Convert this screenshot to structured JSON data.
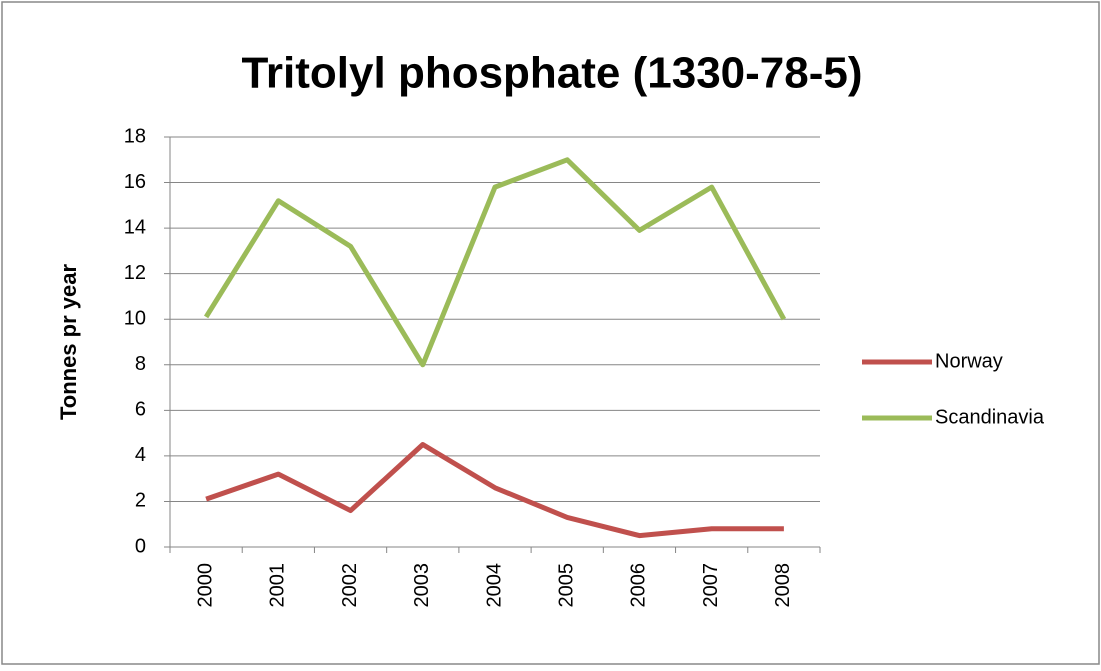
{
  "chart_data": {
    "type": "line",
    "title": "Tritolyl phosphate (1330-78-5)",
    "y_label": "Tonnes pr year",
    "categories": [
      "2000",
      "2001",
      "2002",
      "2003",
      "2004",
      "2005",
      "2006",
      "2007",
      "2008"
    ],
    "series": [
      {
        "name": "Norway",
        "color": "#c0504d",
        "values": [
          2.1,
          3.2,
          1.6,
          4.5,
          2.6,
          1.3,
          0.5,
          0.8,
          0.8
        ]
      },
      {
        "name": "Scandinavia",
        "color": "#9bbb59",
        "values": [
          10.1,
          15.2,
          13.2,
          8.0,
          15.8,
          17.0,
          13.9,
          15.8,
          10.0
        ]
      }
    ],
    "ylim": [
      0,
      18
    ],
    "yticks": [
      0,
      2,
      4,
      6,
      8,
      10,
      12,
      14,
      16,
      18
    ],
    "grid": true,
    "legend": "right"
  }
}
